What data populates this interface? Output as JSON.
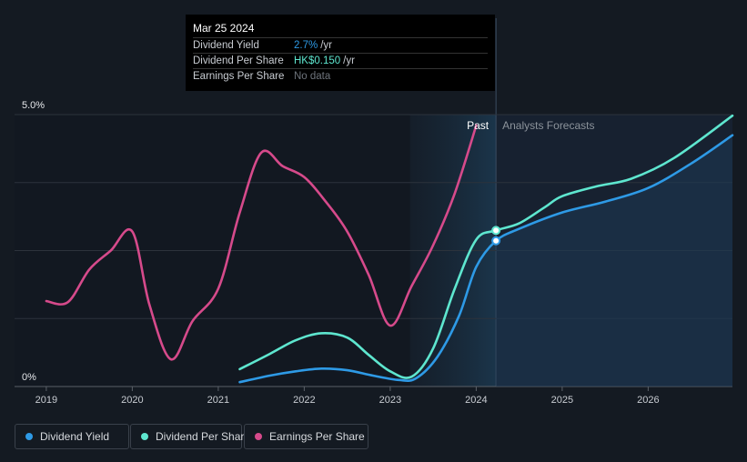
{
  "tooltip": {
    "date": "Mar 25 2024",
    "rows": [
      {
        "label": "Dividend Yield",
        "value": "2.7%",
        "unit": "/yr",
        "color": "#2e9ae6"
      },
      {
        "label": "Dividend Per Share",
        "value": "HK$0.150",
        "unit": "/yr",
        "color": "#5ee6cf"
      },
      {
        "label": "Earnings Per Share",
        "value": "No data",
        "unit": "",
        "color": "#6e747c"
      }
    ]
  },
  "legend": [
    {
      "label": "Dividend Yield",
      "color": "#2e9ae6"
    },
    {
      "label": "Dividend Per Share",
      "color": "#5ee6cf"
    },
    {
      "label": "Earnings Per Share",
      "color": "#d64a8b"
    }
  ],
  "chart_data": {
    "type": "line",
    "title": "",
    "xlabel": "",
    "ylabel": "",
    "ylim": [
      0,
      5.0
    ],
    "xlim": [
      2018.98,
      2026.98
    ],
    "y_axis_labels": [
      "5.0%",
      "0%"
    ],
    "x_ticks": [
      2019,
      2020,
      2021,
      2022,
      2023,
      2024,
      2025,
      2026
    ],
    "x_tick_labels": [
      "2019",
      "2020",
      "2021",
      "2022",
      "2023",
      "2024",
      "2025",
      "2026"
    ],
    "past_label": "Past",
    "forecast_label": "Analysts Forecasts",
    "forecast_start": 2024.23,
    "shaded_start": 2023.23,
    "series": [
      {
        "name": "Dividend Yield",
        "color": "#2e9ae6",
        "filled": true,
        "points": [
          [
            2021.25,
            0.08
          ],
          [
            2021.6,
            0.2
          ],
          [
            2021.9,
            0.28
          ],
          [
            2022.2,
            0.33
          ],
          [
            2022.5,
            0.3
          ],
          [
            2022.8,
            0.2
          ],
          [
            2023.1,
            0.12
          ],
          [
            2023.3,
            0.15
          ],
          [
            2023.55,
            0.55
          ],
          [
            2023.8,
            1.3
          ],
          [
            2024.0,
            2.2
          ],
          [
            2024.23,
            2.68
          ],
          [
            2024.5,
            2.9
          ],
          [
            2025.0,
            3.2
          ],
          [
            2025.5,
            3.4
          ],
          [
            2026.0,
            3.65
          ],
          [
            2026.5,
            4.1
          ],
          [
            2026.98,
            4.62
          ]
        ]
      },
      {
        "name": "Dividend Per Share",
        "color": "#5ee6cf",
        "filled": false,
        "points": [
          [
            2021.25,
            0.32
          ],
          [
            2021.6,
            0.6
          ],
          [
            2021.9,
            0.85
          ],
          [
            2022.2,
            0.98
          ],
          [
            2022.5,
            0.9
          ],
          [
            2022.75,
            0.58
          ],
          [
            2023.0,
            0.28
          ],
          [
            2023.25,
            0.18
          ],
          [
            2023.5,
            0.7
          ],
          [
            2023.75,
            1.8
          ],
          [
            2024.0,
            2.7
          ],
          [
            2024.23,
            2.87
          ],
          [
            2024.5,
            3.0
          ],
          [
            2024.8,
            3.3
          ],
          [
            2025.0,
            3.5
          ],
          [
            2025.4,
            3.68
          ],
          [
            2025.8,
            3.82
          ],
          [
            2026.3,
            4.2
          ],
          [
            2026.98,
            4.98
          ]
        ]
      },
      {
        "name": "Earnings Per Share",
        "color": "#d64a8b",
        "filled": false,
        "points": [
          [
            2019.0,
            1.57
          ],
          [
            2019.25,
            1.55
          ],
          [
            2019.5,
            2.15
          ],
          [
            2019.75,
            2.5
          ],
          [
            2020.0,
            2.85
          ],
          [
            2020.2,
            1.5
          ],
          [
            2020.45,
            0.5
          ],
          [
            2020.7,
            1.2
          ],
          [
            2021.0,
            1.8
          ],
          [
            2021.25,
            3.2
          ],
          [
            2021.5,
            4.3
          ],
          [
            2021.75,
            4.05
          ],
          [
            2022.0,
            3.85
          ],
          [
            2022.25,
            3.4
          ],
          [
            2022.5,
            2.85
          ],
          [
            2022.75,
            2.05
          ],
          [
            2023.0,
            1.12
          ],
          [
            2023.25,
            1.85
          ],
          [
            2023.5,
            2.6
          ],
          [
            2023.75,
            3.55
          ],
          [
            2024.0,
            4.8
          ]
        ]
      }
    ],
    "markers": [
      {
        "series": "Dividend Per Share",
        "x": 2024.23,
        "y": 2.87
      },
      {
        "series": "Dividend Yield",
        "x": 2024.23,
        "y": 2.68
      }
    ]
  }
}
